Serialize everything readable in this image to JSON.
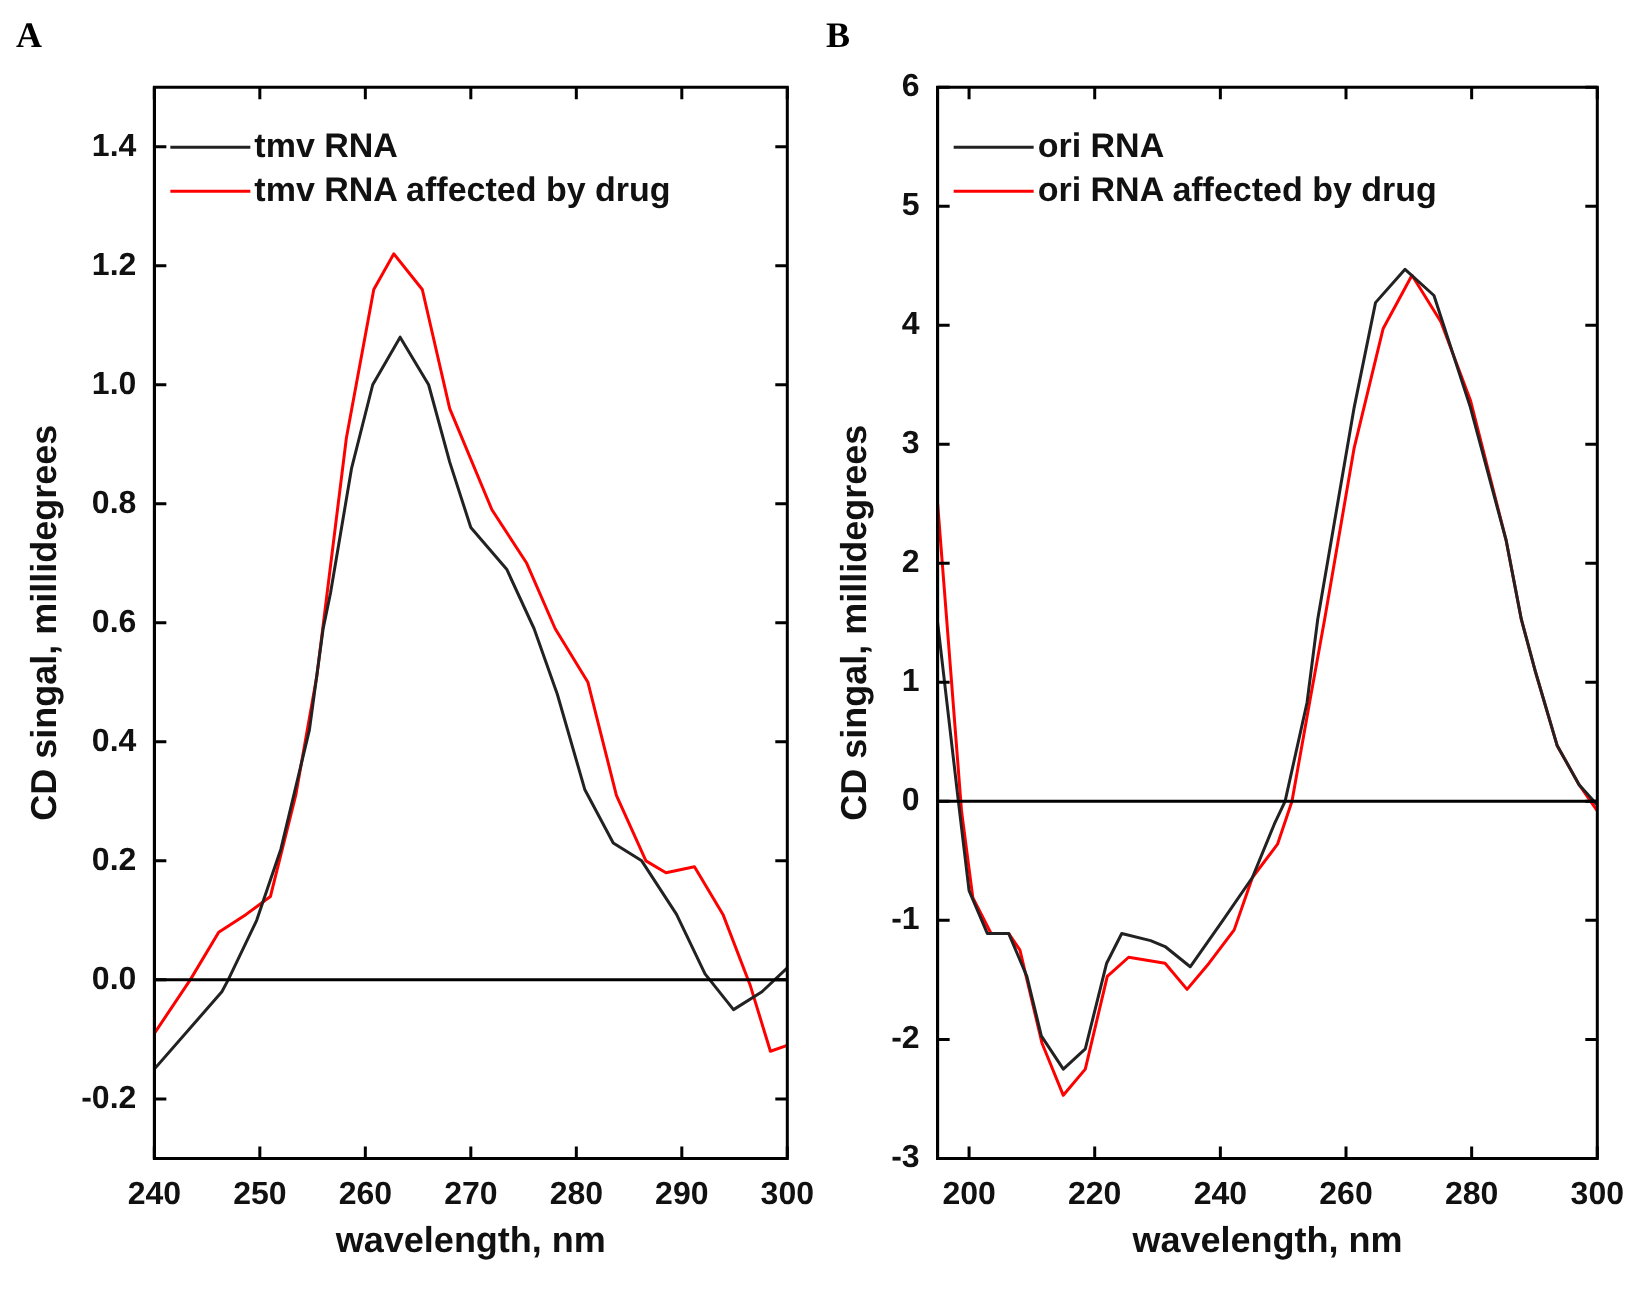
{
  "chart_data": [
    {
      "type": "line",
      "title": "A",
      "xlabel": "wavelength, nm",
      "ylabel": "CD singal, millidegrees",
      "xlim": [
        240,
        300
      ],
      "ylim": [
        -0.3,
        1.5
      ],
      "xticks": [
        240,
        250,
        260,
        270,
        280,
        290,
        300
      ],
      "yticks": [
        -0.2,
        {
          "value": 0,
          "label": "0.0"
        },
        0.2,
        0.4,
        0.6,
        0.8,
        {
          "value": 1,
          "label": "1.0"
        },
        1.2,
        1.4
      ],
      "grid": false,
      "legend": "top left",
      "ref_lines": [
        {
          "axis": "y",
          "value": 0,
          "color": "#000000"
        }
      ],
      "series": [
        {
          "name": "tmv RNA",
          "color": "#222222",
          "x": [
            240,
            246.4,
            247,
            249.7,
            252,
            254.7,
            256,
            256.7,
            258.7,
            260.7,
            263.3,
            266,
            268,
            270,
            273.4,
            276,
            278.2,
            280.8,
            283.5,
            286.2,
            289.5,
            292.2,
            294.9,
            297.6,
            300
          ],
          "values": [
            -0.15,
            -0.02,
            0,
            0.1,
            0.22,
            0.42,
            0.59,
            0.65,
            0.86,
            1.0,
            1.08,
            1.0,
            0.87,
            0.76,
            0.69,
            0.59,
            0.48,
            0.32,
            0.23,
            0.2,
            0.11,
            0.01,
            -0.05,
            -0.02,
            0.02
          ]
        },
        {
          "name": "tmv RNA affected by drug",
          "color": "#ff0000",
          "x": [
            240,
            243.4,
            246.1,
            248.7,
            251,
            253.4,
            255.4,
            258.2,
            260.8,
            262.7,
            265.4,
            268,
            272,
            275.3,
            278,
            281.1,
            283.8,
            286.6,
            288.5,
            291.2,
            293.9,
            296.5,
            298.4,
            300
          ],
          "values": [
            -0.09,
            0,
            0.08,
            0.11,
            0.14,
            0.31,
            0.51,
            0.91,
            1.16,
            1.22,
            1.16,
            0.96,
            0.79,
            0.7,
            0.59,
            0.5,
            0.31,
            0.2,
            0.18,
            0.19,
            0.11,
            -0.01,
            -0.12,
            -0.11
          ]
        }
      ]
    },
    {
      "type": "line",
      "title": "B",
      "xlabel": "wavelength, nm",
      "ylabel": "CD singal, millidegrees",
      "xlim": [
        195,
        300
      ],
      "ylim": [
        -3,
        6
      ],
      "xticks": [
        200,
        220,
        240,
        260,
        280,
        300
      ],
      "yticks": [
        -3,
        -2,
        -1,
        0,
        1,
        2,
        3,
        4,
        5,
        6
      ],
      "grid": false,
      "legend": "top left",
      "ref_lines": [
        {
          "axis": "y",
          "value": 0,
          "color": "#000000"
        }
      ],
      "series": [
        {
          "name": "ori RNA",
          "color": "#222222",
          "x": [
            195,
            198.3,
            200,
            202.9,
            206.3,
            209.2,
            211.5,
            215,
            218.5,
            221.9,
            224.3,
            228.9,
            231.2,
            235.2,
            240.4,
            245.1,
            248.6,
            250.3,
            253.8,
            255.5,
            261.3,
            264.7,
            269.4,
            274,
            279.8,
            285.5,
            287.9,
            290.2,
            293.6,
            297.1,
            300
          ],
          "values": [
            1.5,
            0,
            -0.75,
            -1.11,
            -1.11,
            -1.47,
            -1.97,
            -2.25,
            -2.08,
            -1.36,
            -1.11,
            -1.17,
            -1.22,
            -1.39,
            -1.0,
            -0.64,
            -0.19,
            0,
            0.83,
            1.53,
            3.31,
            4.19,
            4.47,
            4.25,
            3.31,
            2.19,
            1.53,
            1.08,
            0.47,
            0.14,
            -0.03
          ]
        },
        {
          "name": "ori RNA affected by drug",
          "color": "#ff0000",
          "x": [
            195,
            197.1,
            198.8,
            200.6,
            203.5,
            206.3,
            208.1,
            211.6,
            215,
            218.5,
            222,
            225.4,
            231.2,
            234.7,
            238.2,
            242.2,
            245.1,
            249.1,
            251.4,
            254.3,
            256.6,
            261.3,
            265.9,
            270.5,
            275.1,
            279.8,
            285.5,
            287.9,
            290.2,
            293.6,
            297.1,
            300
          ],
          "values": [
            2.5,
            1.08,
            -0.08,
            -0.81,
            -1.11,
            -1.11,
            -1.25,
            -2.03,
            -2.47,
            -2.25,
            -1.47,
            -1.31,
            -1.36,
            -1.58,
            -1.36,
            -1.08,
            -0.64,
            -0.36,
            0,
            0.86,
            1.53,
            2.97,
            3.97,
            4.42,
            4.03,
            3.37,
            2.19,
            1.53,
            1.08,
            0.47,
            0.14,
            -0.08
          ]
        }
      ]
    }
  ]
}
